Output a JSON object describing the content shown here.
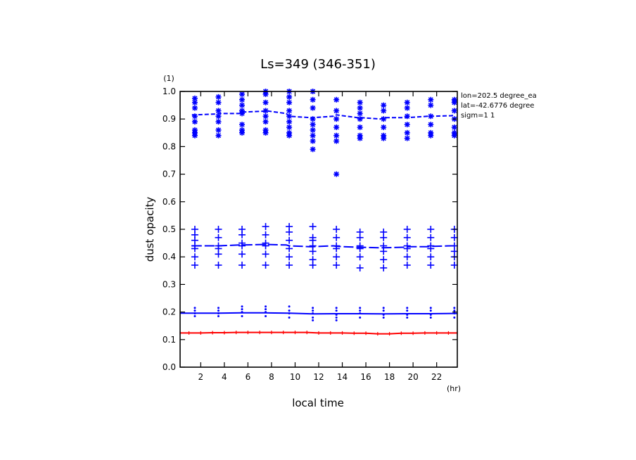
{
  "chart_data": {
    "type": "scatter",
    "title": "Ls=349 (346-351)",
    "xlabel": "local time",
    "ylabel": "dust opacity",
    "xunit": "(hr)",
    "yunit": "(1)",
    "xlim": [
      0.25,
      23.75
    ],
    "ylim": [
      0.0,
      1.0
    ],
    "xticks": [
      "2",
      "4",
      "6",
      "8",
      "10",
      "12",
      "14",
      "16",
      "18",
      "20",
      "22"
    ],
    "yticks": [
      "0.0",
      "0.1",
      "0.2",
      "0.3",
      "0.4",
      "0.5",
      "0.6",
      "0.7",
      "0.8",
      "0.9",
      "1.0"
    ],
    "annotations": [
      "lon=202.5 degree_ea",
      "lat=-42.6776 degree",
      "sigm=1 1"
    ],
    "grid": false,
    "series": [
      {
        "marker": "asterisk",
        "color": "#0000ff",
        "line": "dashed",
        "x": [
          1.25,
          1.5,
          3.25,
          3.5,
          5.25,
          5.5,
          7.25,
          7.5,
          9.25,
          9.5,
          11.25,
          11.5,
          13.25,
          13.5,
          15.25,
          15.5,
          17.25,
          17.5,
          19.25,
          19.5,
          21.25,
          21.5,
          23.25,
          23.5
        ],
        "y": [
          0.915,
          0.915,
          0.918,
          0.92,
          0.92,
          0.925,
          0.928,
          0.93,
          0.92,
          0.91,
          0.905,
          0.905,
          0.91,
          0.915,
          0.905,
          0.905,
          0.9,
          0.905,
          0.905,
          0.905,
          0.91,
          0.91,
          0.912,
          0.915
        ],
        "points": [
          [
            1.5,
            0.975
          ],
          [
            1.5,
            0.96
          ],
          [
            1.5,
            0.94
          ],
          [
            1.5,
            0.91
          ],
          [
            1.5,
            0.89
          ],
          [
            1.5,
            0.86
          ],
          [
            1.5,
            0.85
          ],
          [
            1.5,
            0.84
          ],
          [
            3.5,
            0.98
          ],
          [
            3.5,
            0.96
          ],
          [
            3.5,
            0.93
          ],
          [
            3.5,
            0.91
          ],
          [
            3.5,
            0.89
          ],
          [
            3.5,
            0.86
          ],
          [
            3.5,
            0.84
          ],
          [
            5.5,
            0.99
          ],
          [
            5.5,
            0.97
          ],
          [
            5.5,
            0.95
          ],
          [
            5.5,
            0.93
          ],
          [
            5.5,
            0.92
          ],
          [
            5.5,
            0.88
          ],
          [
            5.5,
            0.86
          ],
          [
            5.5,
            0.85
          ],
          [
            7.5,
            1.0
          ],
          [
            7.5,
            0.99
          ],
          [
            7.5,
            0.96
          ],
          [
            7.5,
            0.93
          ],
          [
            7.5,
            0.91
          ],
          [
            7.5,
            0.89
          ],
          [
            7.5,
            0.86
          ],
          [
            7.5,
            0.85
          ],
          [
            9.5,
            1.0
          ],
          [
            9.5,
            0.98
          ],
          [
            9.5,
            0.96
          ],
          [
            9.5,
            0.93
          ],
          [
            9.5,
            0.91
          ],
          [
            9.5,
            0.89
          ],
          [
            9.5,
            0.87
          ],
          [
            9.5,
            0.85
          ],
          [
            9.5,
            0.84
          ],
          [
            11.5,
            1.0
          ],
          [
            11.5,
            0.97
          ],
          [
            11.5,
            0.94
          ],
          [
            11.5,
            0.9
          ],
          [
            11.5,
            0.88
          ],
          [
            11.5,
            0.86
          ],
          [
            11.5,
            0.84
          ],
          [
            11.5,
            0.82
          ],
          [
            11.5,
            0.79
          ],
          [
            13.5,
            0.97
          ],
          [
            13.5,
            0.93
          ],
          [
            13.5,
            0.9
          ],
          [
            13.5,
            0.87
          ],
          [
            13.5,
            0.84
          ],
          [
            13.5,
            0.82
          ],
          [
            13.5,
            0.7
          ],
          [
            15.5,
            0.96
          ],
          [
            15.5,
            0.94
          ],
          [
            15.5,
            0.92
          ],
          [
            15.5,
            0.9
          ],
          [
            15.5,
            0.87
          ],
          [
            15.5,
            0.84
          ],
          [
            15.5,
            0.83
          ],
          [
            17.5,
            0.95
          ],
          [
            17.5,
            0.93
          ],
          [
            17.5,
            0.9
          ],
          [
            17.5,
            0.87
          ],
          [
            17.5,
            0.84
          ],
          [
            17.5,
            0.83
          ],
          [
            19.5,
            0.96
          ],
          [
            19.5,
            0.94
          ],
          [
            19.5,
            0.91
          ],
          [
            19.5,
            0.88
          ],
          [
            19.5,
            0.85
          ],
          [
            19.5,
            0.83
          ],
          [
            21.5,
            0.97
          ],
          [
            21.5,
            0.95
          ],
          [
            21.5,
            0.91
          ],
          [
            21.5,
            0.88
          ],
          [
            21.5,
            0.85
          ],
          [
            21.5,
            0.84
          ],
          [
            23.5,
            0.97
          ],
          [
            23.5,
            0.96
          ],
          [
            23.5,
            0.93
          ],
          [
            23.5,
            0.9
          ],
          [
            23.5,
            0.87
          ],
          [
            23.5,
            0.85
          ],
          [
            23.5,
            0.84
          ]
        ]
      },
      {
        "marker": "plus",
        "color": "#0000ff",
        "line": "long-dashed",
        "x": [
          1.25,
          1.5,
          3.25,
          3.5,
          5.25,
          5.5,
          7.25,
          7.5,
          9.25,
          9.5,
          11.25,
          11.5,
          13.25,
          13.5,
          15.25,
          15.5,
          17.25,
          17.5,
          19.25,
          19.5,
          21.25,
          21.5,
          23.25,
          23.5
        ],
        "y": [
          0.44,
          0.44,
          0.44,
          0.44,
          0.443,
          0.443,
          0.445,
          0.445,
          0.443,
          0.44,
          0.437,
          0.437,
          0.44,
          0.438,
          0.435,
          0.435,
          0.433,
          0.433,
          0.435,
          0.437,
          0.437,
          0.438,
          0.44,
          0.44
        ],
        "points": [
          [
            1.5,
            0.5
          ],
          [
            1.5,
            0.48
          ],
          [
            1.5,
            0.46
          ],
          [
            1.5,
            0.44
          ],
          [
            1.5,
            0.43
          ],
          [
            1.5,
            0.4
          ],
          [
            1.5,
            0.37
          ],
          [
            3.5,
            0.5
          ],
          [
            3.5,
            0.47
          ],
          [
            3.5,
            0.44
          ],
          [
            3.5,
            0.43
          ],
          [
            3.5,
            0.41
          ],
          [
            3.5,
            0.37
          ],
          [
            5.5,
            0.5
          ],
          [
            5.5,
            0.48
          ],
          [
            5.5,
            0.45
          ],
          [
            5.5,
            0.44
          ],
          [
            5.5,
            0.41
          ],
          [
            5.5,
            0.37
          ],
          [
            7.5,
            0.51
          ],
          [
            7.5,
            0.48
          ],
          [
            7.5,
            0.45
          ],
          [
            7.5,
            0.44
          ],
          [
            7.5,
            0.41
          ],
          [
            7.5,
            0.37
          ],
          [
            9.5,
            0.51
          ],
          [
            9.5,
            0.49
          ],
          [
            9.5,
            0.46
          ],
          [
            9.5,
            0.43
          ],
          [
            9.5,
            0.4
          ],
          [
            9.5,
            0.37
          ],
          [
            11.5,
            0.51
          ],
          [
            11.5,
            0.47
          ],
          [
            11.5,
            0.46
          ],
          [
            11.5,
            0.44
          ],
          [
            11.5,
            0.42
          ],
          [
            11.5,
            0.39
          ],
          [
            11.5,
            0.37
          ],
          [
            13.5,
            0.5
          ],
          [
            13.5,
            0.47
          ],
          [
            13.5,
            0.44
          ],
          [
            13.5,
            0.43
          ],
          [
            13.5,
            0.4
          ],
          [
            13.5,
            0.37
          ],
          [
            15.5,
            0.49
          ],
          [
            15.5,
            0.47
          ],
          [
            15.5,
            0.44
          ],
          [
            15.5,
            0.43
          ],
          [
            15.5,
            0.4
          ],
          [
            15.5,
            0.36
          ],
          [
            17.5,
            0.49
          ],
          [
            17.5,
            0.47
          ],
          [
            17.5,
            0.44
          ],
          [
            17.5,
            0.42
          ],
          [
            17.5,
            0.39
          ],
          [
            17.5,
            0.36
          ],
          [
            19.5,
            0.5
          ],
          [
            19.5,
            0.47
          ],
          [
            19.5,
            0.44
          ],
          [
            19.5,
            0.43
          ],
          [
            19.5,
            0.4
          ],
          [
            19.5,
            0.37
          ],
          [
            21.5,
            0.5
          ],
          [
            21.5,
            0.47
          ],
          [
            21.5,
            0.44
          ],
          [
            21.5,
            0.43
          ],
          [
            21.5,
            0.4
          ],
          [
            21.5,
            0.37
          ],
          [
            23.5,
            0.5
          ],
          [
            23.5,
            0.47
          ],
          [
            23.5,
            0.44
          ],
          [
            23.5,
            0.42
          ],
          [
            23.5,
            0.4
          ],
          [
            23.5,
            0.37
          ]
        ]
      },
      {
        "marker": "dot",
        "color": "#0000ff",
        "line": "solid",
        "x": [
          0.25,
          1.5,
          3.5,
          5.5,
          7.5,
          9.5,
          11.5,
          13.5,
          15.5,
          17.5,
          19.5,
          21.5,
          23.5,
          23.75
        ],
        "y": [
          0.196,
          0.196,
          0.196,
          0.197,
          0.197,
          0.196,
          0.193,
          0.194,
          0.194,
          0.193,
          0.194,
          0.194,
          0.195,
          0.195
        ],
        "points": [
          [
            1.5,
            0.215
          ],
          [
            1.5,
            0.205
          ],
          [
            1.5,
            0.195
          ],
          [
            1.5,
            0.185
          ],
          [
            3.5,
            0.215
          ],
          [
            3.5,
            0.205
          ],
          [
            3.5,
            0.195
          ],
          [
            3.5,
            0.185
          ],
          [
            5.5,
            0.22
          ],
          [
            5.5,
            0.21
          ],
          [
            5.5,
            0.2
          ],
          [
            5.5,
            0.185
          ],
          [
            7.5,
            0.22
          ],
          [
            7.5,
            0.21
          ],
          [
            7.5,
            0.2
          ],
          [
            7.5,
            0.185
          ],
          [
            9.5,
            0.22
          ],
          [
            9.5,
            0.205
          ],
          [
            9.5,
            0.195
          ],
          [
            9.5,
            0.18
          ],
          [
            11.5,
            0.215
          ],
          [
            11.5,
            0.205
          ],
          [
            11.5,
            0.195
          ],
          [
            11.5,
            0.18
          ],
          [
            11.5,
            0.17
          ],
          [
            13.5,
            0.215
          ],
          [
            13.5,
            0.205
          ],
          [
            13.5,
            0.19
          ],
          [
            13.5,
            0.18
          ],
          [
            13.5,
            0.17
          ],
          [
            15.5,
            0.215
          ],
          [
            15.5,
            0.205
          ],
          [
            15.5,
            0.195
          ],
          [
            15.5,
            0.18
          ],
          [
            17.5,
            0.215
          ],
          [
            17.5,
            0.205
          ],
          [
            17.5,
            0.19
          ],
          [
            17.5,
            0.18
          ],
          [
            19.5,
            0.215
          ],
          [
            19.5,
            0.205
          ],
          [
            19.5,
            0.19
          ],
          [
            19.5,
            0.18
          ],
          [
            21.5,
            0.215
          ],
          [
            21.5,
            0.205
          ],
          [
            21.5,
            0.19
          ],
          [
            21.5,
            0.18
          ],
          [
            23.5,
            0.215
          ],
          [
            23.5,
            0.205
          ],
          [
            23.5,
            0.195
          ],
          [
            23.5,
            0.18
          ]
        ]
      },
      {
        "marker": "small-plus",
        "color": "#ff0000",
        "line": "solid",
        "x": [
          0.25,
          1,
          2,
          3,
          4,
          5,
          6,
          7,
          8,
          9,
          10,
          11,
          12,
          13,
          14,
          15,
          16,
          17,
          18,
          19,
          20,
          21,
          22,
          23,
          23.75
        ],
        "y": [
          0.124,
          0.124,
          0.124,
          0.125,
          0.125,
          0.126,
          0.126,
          0.126,
          0.126,
          0.126,
          0.126,
          0.126,
          0.124,
          0.124,
          0.124,
          0.123,
          0.123,
          0.121,
          0.121,
          0.123,
          0.123,
          0.124,
          0.124,
          0.124,
          0.124
        ]
      }
    ]
  }
}
